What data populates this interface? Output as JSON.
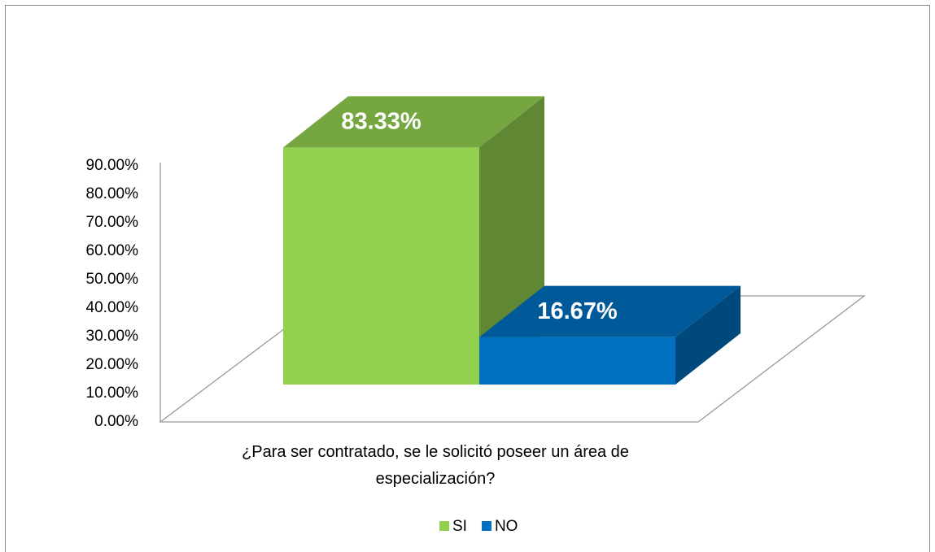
{
  "chart_data": {
    "type": "bar3d",
    "categories": [
      "¿Para ser contratado, se le solicitó poseer un área de especialización?"
    ],
    "series": [
      {
        "name": "SI",
        "color": "#92d050",
        "values": [
          83.33
        ],
        "value_labels": [
          "83.33%"
        ]
      },
      {
        "name": "NO",
        "color": "#0070c0",
        "values": [
          16.67
        ],
        "value_labels": [
          "16.67%"
        ]
      }
    ],
    "ylim": [
      0,
      90
    ],
    "yticks": [
      {
        "value": 0,
        "label": "0.00%"
      },
      {
        "value": 10,
        "label": "10.00%"
      },
      {
        "value": 20,
        "label": "20.00%"
      },
      {
        "value": 30,
        "label": "30.00%"
      },
      {
        "value": 40,
        "label": "40.00%"
      },
      {
        "value": 50,
        "label": "50.00%"
      },
      {
        "value": 60,
        "label": "60.00%"
      },
      {
        "value": 70,
        "label": "70.00%"
      },
      {
        "value": 80,
        "label": "80.00%"
      },
      {
        "value": 90,
        "label": "90.00%"
      }
    ],
    "legend": "bottom"
  }
}
